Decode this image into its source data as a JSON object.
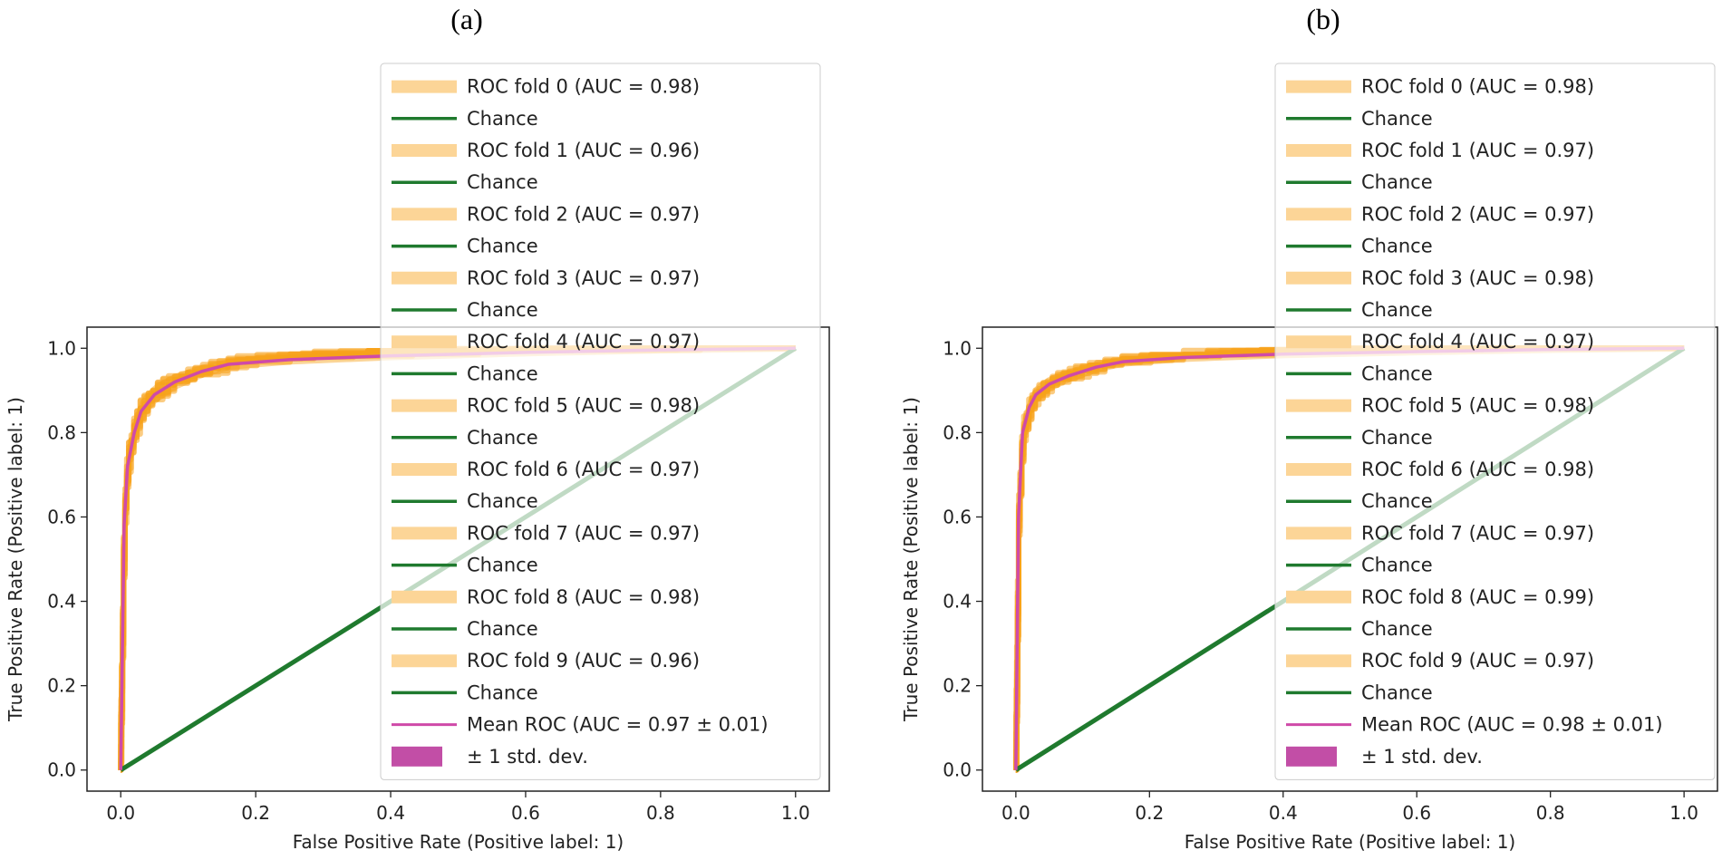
{
  "chart_data": [
    {
      "type": "line",
      "panel_label": "(a)",
      "xlabel": "False Positive Rate (Positive label: 1)",
      "ylabel": "True Positive Rate (Positive label: 1)",
      "xlim": [
        -0.05,
        1.05
      ],
      "ylim": [
        -0.05,
        1.05
      ],
      "xticks": [
        0.0,
        0.2,
        0.4,
        0.6,
        0.8,
        1.0
      ],
      "yticks": [
        0.0,
        0.2,
        0.4,
        0.6,
        0.8,
        1.0
      ],
      "xtick_labels": [
        "0.0",
        "0.2",
        "0.4",
        "0.6",
        "0.8",
        "1.0"
      ],
      "ytick_labels": [
        "0.0",
        "0.2",
        "0.4",
        "0.6",
        "0.8",
        "1.0"
      ],
      "grid": false,
      "legend_position": "upper-right",
      "mean_roc": {
        "fpr": [
          0.0,
          0.005,
          0.01,
          0.02,
          0.03,
          0.05,
          0.08,
          0.12,
          0.16,
          0.25,
          0.4,
          0.6,
          0.8,
          1.0
        ],
        "tpr": [
          0.0,
          0.58,
          0.72,
          0.8,
          0.85,
          0.89,
          0.92,
          0.945,
          0.962,
          0.973,
          0.982,
          0.99,
          0.996,
          1.0
        ]
      },
      "std_band_width": 0.035,
      "chance": {
        "fpr": [
          0.0,
          1.0
        ],
        "tpr": [
          0.0,
          1.0
        ]
      },
      "legend": [
        {
          "kind": "fold",
          "label": "ROC fold 0 (AUC = 0.98)"
        },
        {
          "kind": "chance",
          "label": "Chance"
        },
        {
          "kind": "fold",
          "label": "ROC fold 1 (AUC = 0.96)"
        },
        {
          "kind": "chance",
          "label": "Chance"
        },
        {
          "kind": "fold",
          "label": "ROC fold 2 (AUC = 0.97)"
        },
        {
          "kind": "chance",
          "label": "Chance"
        },
        {
          "kind": "fold",
          "label": "ROC fold 3 (AUC = 0.97)"
        },
        {
          "kind": "chance",
          "label": "Chance"
        },
        {
          "kind": "fold",
          "label": "ROC fold 4 (AUC = 0.97)"
        },
        {
          "kind": "chance",
          "label": "Chance"
        },
        {
          "kind": "fold",
          "label": "ROC fold 5 (AUC = 0.98)"
        },
        {
          "kind": "chance",
          "label": "Chance"
        },
        {
          "kind": "fold",
          "label": "ROC fold 6 (AUC = 0.97)"
        },
        {
          "kind": "chance",
          "label": "Chance"
        },
        {
          "kind": "fold",
          "label": "ROC fold 7 (AUC = 0.97)"
        },
        {
          "kind": "chance",
          "label": "Chance"
        },
        {
          "kind": "fold",
          "label": "ROC fold 8 (AUC = 0.98)"
        },
        {
          "kind": "chance",
          "label": "Chance"
        },
        {
          "kind": "fold",
          "label": "ROC fold 9 (AUC = 0.96)"
        },
        {
          "kind": "chance",
          "label": "Chance"
        },
        {
          "kind": "mean",
          "label": "Mean ROC (AUC = 0.97 ± 0.01)"
        },
        {
          "kind": "std",
          "label": "± 1 std. dev."
        }
      ]
    },
    {
      "type": "line",
      "panel_label": "(b)",
      "xlabel": "False Positive Rate (Positive label: 1)",
      "ylabel": "True Positive Rate (Positive label: 1)",
      "xlim": [
        -0.05,
        1.05
      ],
      "ylim": [
        -0.05,
        1.05
      ],
      "xticks": [
        0.0,
        0.2,
        0.4,
        0.6,
        0.8,
        1.0
      ],
      "yticks": [
        0.0,
        0.2,
        0.4,
        0.6,
        0.8,
        1.0
      ],
      "xtick_labels": [
        "0.0",
        "0.2",
        "0.4",
        "0.6",
        "0.8",
        "1.0"
      ],
      "ytick_labels": [
        "0.0",
        "0.2",
        "0.4",
        "0.6",
        "0.8",
        "1.0"
      ],
      "grid": false,
      "legend_position": "upper-right",
      "mean_roc": {
        "fpr": [
          0.0,
          0.004,
          0.01,
          0.02,
          0.03,
          0.05,
          0.08,
          0.12,
          0.16,
          0.25,
          0.4,
          0.6,
          0.8,
          1.0
        ],
        "tpr": [
          0.0,
          0.6,
          0.8,
          0.86,
          0.89,
          0.915,
          0.935,
          0.955,
          0.968,
          0.978,
          0.986,
          0.992,
          0.997,
          1.0
        ]
      },
      "std_band_width": 0.03,
      "chance": {
        "fpr": [
          0.0,
          1.0
        ],
        "tpr": [
          0.0,
          1.0
        ]
      },
      "legend": [
        {
          "kind": "fold",
          "label": "ROC fold 0 (AUC = 0.98)"
        },
        {
          "kind": "chance",
          "label": "Chance"
        },
        {
          "kind": "fold",
          "label": "ROC fold 1 (AUC = 0.97)"
        },
        {
          "kind": "chance",
          "label": "Chance"
        },
        {
          "kind": "fold",
          "label": "ROC fold 2 (AUC = 0.97)"
        },
        {
          "kind": "chance",
          "label": "Chance"
        },
        {
          "kind": "fold",
          "label": "ROC fold 3 (AUC = 0.98)"
        },
        {
          "kind": "chance",
          "label": "Chance"
        },
        {
          "kind": "fold",
          "label": "ROC fold 4 (AUC = 0.97)"
        },
        {
          "kind": "chance",
          "label": "Chance"
        },
        {
          "kind": "fold",
          "label": "ROC fold 5 (AUC = 0.98)"
        },
        {
          "kind": "chance",
          "label": "Chance"
        },
        {
          "kind": "fold",
          "label": "ROC fold 6 (AUC = 0.98)"
        },
        {
          "kind": "chance",
          "label": "Chance"
        },
        {
          "kind": "fold",
          "label": "ROC fold 7 (AUC = 0.97)"
        },
        {
          "kind": "chance",
          "label": "Chance"
        },
        {
          "kind": "fold",
          "label": "ROC fold 8 (AUC = 0.99)"
        },
        {
          "kind": "chance",
          "label": "Chance"
        },
        {
          "kind": "fold",
          "label": "ROC fold 9 (AUC = 0.97)"
        },
        {
          "kind": "chance",
          "label": "Chance"
        },
        {
          "kind": "mean",
          "label": "Mean ROC (AUC = 0.98 ± 0.01)"
        },
        {
          "kind": "std",
          "label": "± 1 std. dev."
        }
      ]
    }
  ],
  "colors": {
    "fold": "#fcd597",
    "fold_curve": "#f7a21b",
    "chance": "#1f7a2e",
    "mean": "#cf4aa8",
    "std": "#c24ea6",
    "axis": "#222222"
  }
}
